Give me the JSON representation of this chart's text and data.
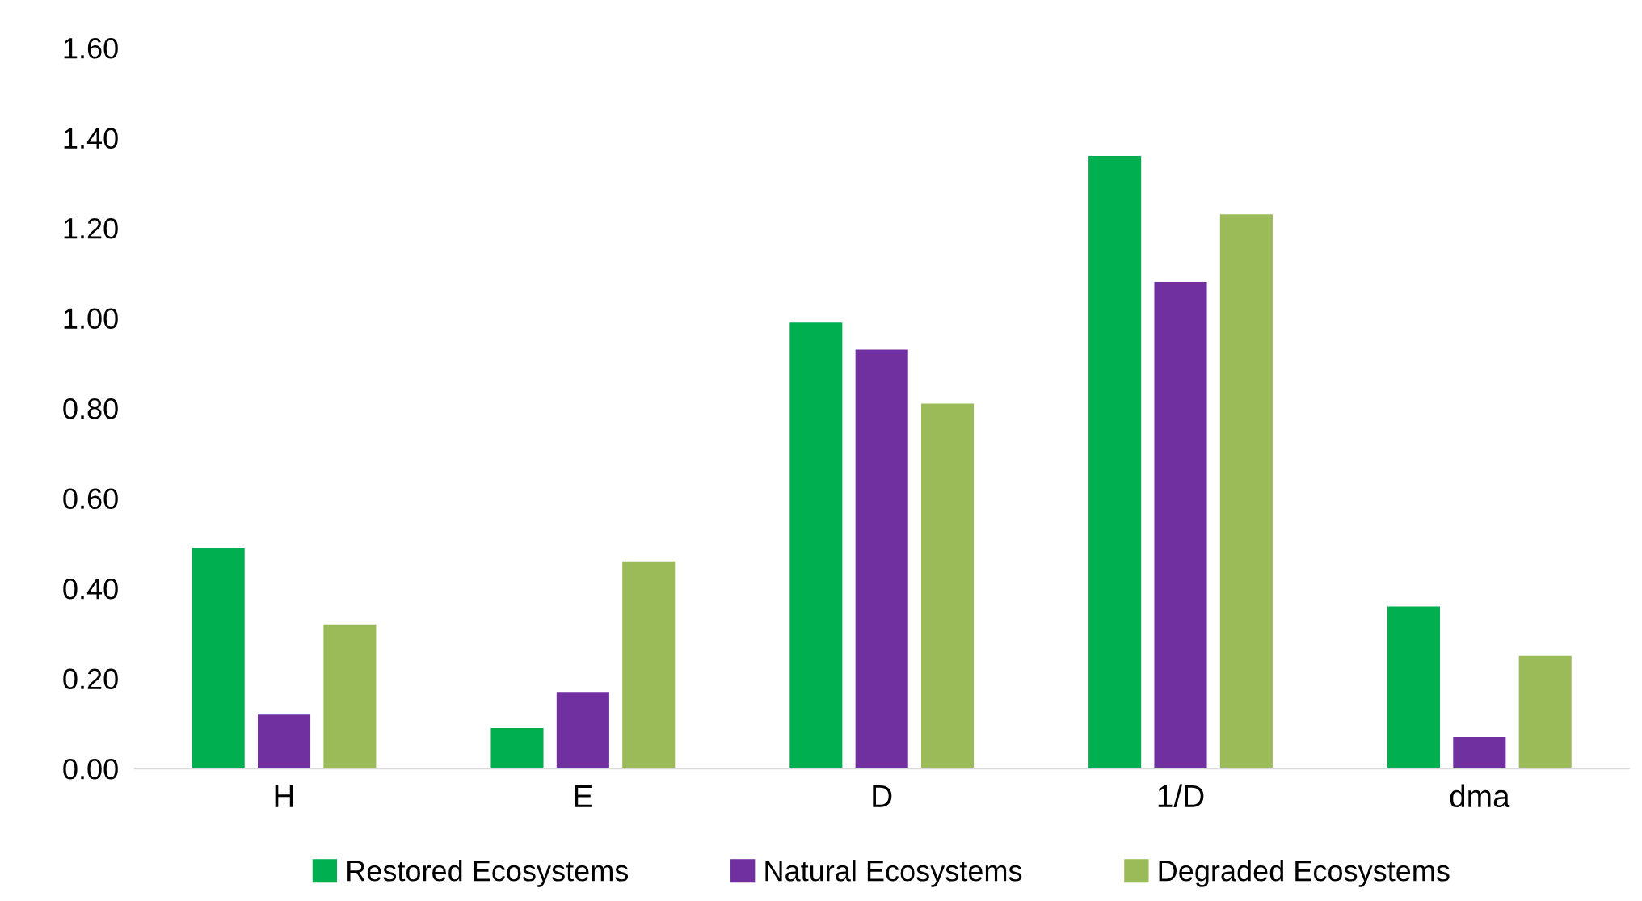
{
  "chart_data": {
    "type": "bar",
    "categories": [
      "H",
      "E",
      "D",
      "1/D",
      "dma"
    ],
    "series": [
      {
        "name": "Restored Ecosystems",
        "color": "#00b050",
        "values": [
          0.49,
          0.09,
          0.99,
          1.36,
          0.36
        ]
      },
      {
        "name": "Natural Ecosystems",
        "color": "#7030a0",
        "values": [
          0.12,
          0.17,
          0.93,
          1.08,
          0.07
        ]
      },
      {
        "name": "Degraded Ecosystems",
        "color": "#9bbb59",
        "values": [
          0.32,
          0.46,
          0.81,
          1.23,
          0.25
        ]
      }
    ],
    "ylim": [
      0,
      1.6
    ],
    "yticks": [
      {
        "value": 0,
        "label": "0.00"
      },
      {
        "value": 0.2,
        "label": "0.20"
      },
      {
        "value": 0.4,
        "label": "0.40"
      },
      {
        "value": 0.6,
        "label": "0.60"
      },
      {
        "value": 0.8,
        "label": "0.80"
      },
      {
        "value": 1.0,
        "label": "1.00"
      },
      {
        "value": 1.2,
        "label": "1.20"
      },
      {
        "value": 1.4,
        "label": "1.40"
      },
      {
        "value": 1.6,
        "label": "1.60"
      }
    ],
    "grid": false,
    "legend": "bottom"
  }
}
